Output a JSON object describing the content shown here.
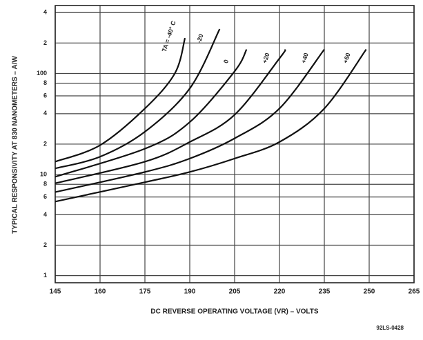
{
  "chart_data": {
    "type": "line",
    "xlabel": "DC REVERSE OPERATING VOLTAGE (VR) – VOLTS",
    "ylabel": "TYPICAL RESPONSIVITY AT 830 NANOMETERS – A/W",
    "figure_code": "92LS-0428",
    "log_y": true,
    "grid": true,
    "xlim": [
      145,
      265
    ],
    "xticks": [
      145,
      160,
      175,
      190,
      205,
      220,
      235,
      250,
      265
    ],
    "ylim": [
      0.85,
      470
    ],
    "yticks": [
      1,
      2,
      4,
      6,
      8,
      10,
      {
        "value": 20,
        "label": "2"
      },
      {
        "value": 40,
        "label": "4"
      },
      {
        "value": 60,
        "label": "6"
      },
      {
        "value": 80,
        "label": "8"
      },
      100,
      {
        "value": 200,
        "label": "2"
      },
      {
        "value": 400,
        "label": "4"
      }
    ],
    "series": [
      {
        "name": "TA = -40° C",
        "color": "#111",
        "x": [
          145,
          160,
          175,
          185,
          188.4
        ],
        "values": [
          13.4,
          19.5,
          45,
          100,
          224
        ]
      },
      {
        "name": "-20",
        "color": "#111",
        "x": [
          145,
          160,
          175,
          190,
          200
        ],
        "values": [
          11.5,
          15,
          26.5,
          71,
          275
        ]
      },
      {
        "name": "0",
        "color": "#111",
        "x": [
          145,
          175,
          190,
          205,
          209
        ],
        "values": [
          9.5,
          18,
          33,
          105,
          173
        ]
      },
      {
        "name": "+20",
        "color": "#111",
        "x": [
          145,
          175,
          190,
          205,
          220,
          222
        ],
        "values": [
          8.2,
          13.4,
          21,
          39,
          141,
          173
        ]
      },
      {
        "name": "+40",
        "color": "#111",
        "x": [
          145,
          175,
          190,
          205,
          220,
          235
        ],
        "values": [
          6.7,
          10.6,
          14.4,
          22.8,
          45,
          173
        ]
      },
      {
        "name": "+60",
        "color": "#111",
        "x": [
          145,
          175,
          190,
          205,
          220,
          235,
          249
        ],
        "values": [
          5.4,
          8.4,
          10.6,
          14.4,
          21,
          45,
          173
        ]
      }
    ]
  }
}
